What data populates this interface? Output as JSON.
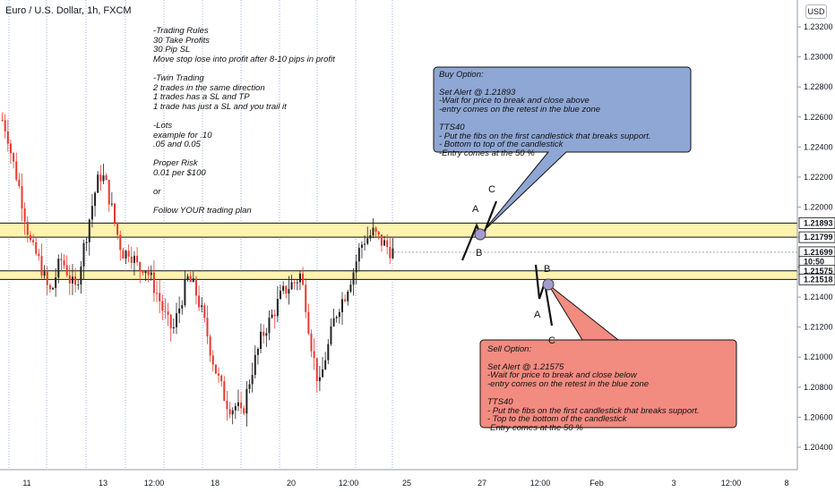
{
  "chart_data": {
    "type": "candlestick",
    "title": "Euro / U.S. Dollar, 1h, FXCM",
    "currency": "USD",
    "ylim": [
      1.2034,
      1.2326
    ],
    "y_ticks": [
      "1.23200",
      "1.23000",
      "1.22800",
      "1.22600",
      "1.22400",
      "1.22200",
      "1.22000",
      "1.21800",
      "1.21600",
      "1.21400",
      "1.21200",
      "1.21000",
      "1.20800",
      "1.20600",
      "1.20400"
    ],
    "x_ticks": [
      "11",
      "13",
      "12:00",
      "18",
      "20",
      "12:00",
      "25",
      "27",
      "12:00",
      "Feb",
      "3",
      "12:00",
      "8"
    ],
    "price_labels": [
      {
        "text": "1.21893",
        "value": 1.21893,
        "color": "#131722"
      },
      {
        "text": "1.21799",
        "value": 1.21799,
        "color": "#131722"
      },
      {
        "text": "1.21699",
        "value": 1.21699,
        "color": "#131722"
      },
      {
        "text": "10:50",
        "value": 1.21635,
        "color": "#131722"
      },
      {
        "text": "1.21575",
        "value": 1.21575,
        "color": "#131722"
      },
      {
        "text": "1.21518",
        "value": 1.21518,
        "color": "#131722"
      }
    ],
    "zones": [
      {
        "name": "resistance",
        "from": 1.21799,
        "to": 1.21893,
        "color": "#fff3b0"
      },
      {
        "name": "support",
        "from": 1.21518,
        "to": 1.21575,
        "color": "#fff3b0"
      }
    ],
    "ohlc_path": [
      1.2258,
      1.225,
      1.2232,
      1.222,
      1.2205,
      1.2188,
      1.2172,
      1.2168,
      1.216,
      1.2148,
      1.2142,
      1.2155,
      1.2165,
      1.216,
      1.215,
      1.2145,
      1.2162,
      1.2178,
      1.2195,
      1.221,
      1.2222,
      1.2218,
      1.2205,
      1.219,
      1.2176,
      1.2168,
      1.2172,
      1.2165,
      1.2158,
      1.2162,
      1.2155,
      1.2148,
      1.214,
      1.213,
      1.2122,
      1.2118,
      1.213,
      1.2142,
      1.2152,
      1.2148,
      1.214,
      1.2128,
      1.2115,
      1.21,
      1.2088,
      1.2078,
      1.207,
      1.2066,
      1.2068,
      1.206,
      1.2075,
      1.209,
      1.21,
      1.2112,
      1.212,
      1.2125,
      1.2133,
      1.214,
      1.2145,
      1.2148,
      1.215,
      1.2155,
      1.214,
      1.2115,
      1.2095,
      1.208,
      1.2098,
      1.211,
      1.2125,
      1.2135,
      1.214,
      1.215,
      1.2158,
      1.217,
      1.2178,
      1.218,
      1.2183,
      1.2179,
      1.2176,
      1.2173,
      1.217
    ]
  },
  "notes": {
    "lines": "-Trading Rules\n30 Take Profits\n30 Pip SL\nMove stop lose into profit after 8-10 pips in profit\n\n-Twin Trading\n2 trades in the same direction\n1 trades has a SL and TP\n1 trade has just a SL and you trail it\n\n-Lots\nexample for .10\n.05 and 0.05\n\nProper Risk\n0.01 per $100\n\nor\n\nFollow YOUR trading plan"
  },
  "buy_callout": {
    "text": "Buy Option:\n\nSet Alert @ 1.21893\n-Wait for price to break and close above\n-entry comes on the retest in the blue zone\n\nTTS40\n- Put the fibs on the first candlestick that breaks support.\n- Bottom to top of the candlestick\n-Entry comes at the 50 %",
    "color": "#8fa7d4"
  },
  "sell_callout": {
    "text": "Sell Option:\n\nSet Alert @ 1.21575\n-Wait for price to break and close below\n-entry comes on the retest in the blue zone\n\nTTS40\n- Put the fibs on the first candlestick that breaks support.\n- Top to the bottom of the candlestick\n-Entry comes at the 50 %",
    "color": "#f28b80"
  },
  "buy_pattern": {
    "a": "A",
    "b": "B",
    "c": "C"
  },
  "sell_pattern": {
    "a": "A",
    "b": "B",
    "c": "C"
  }
}
